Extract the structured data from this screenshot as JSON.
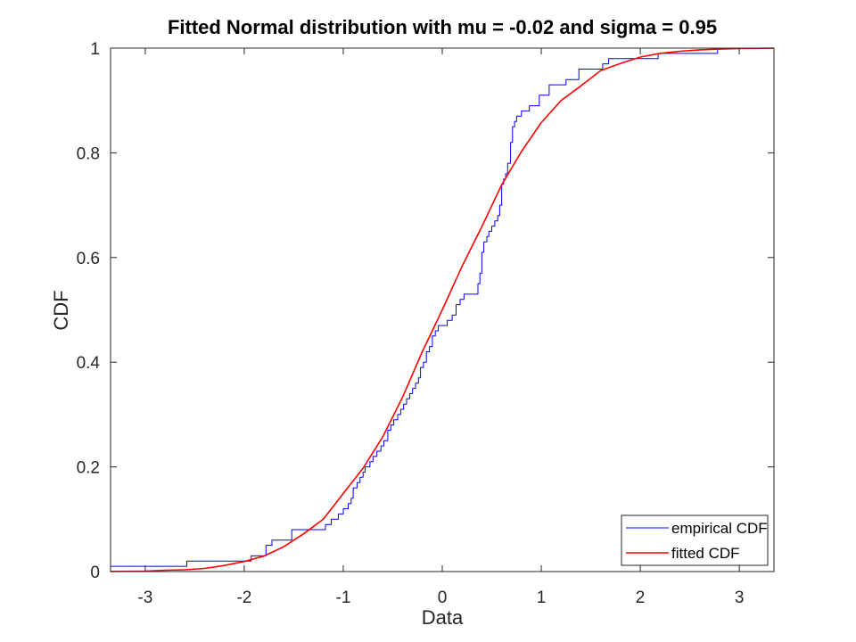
{
  "chart_data": {
    "type": "line",
    "title": "Fitted Normal distribution with mu = -0.02 and sigma = 0.95",
    "xlabel": "Data",
    "ylabel": "CDF",
    "xlim": [
      -3.35,
      3.35
    ],
    "ylim": [
      0,
      1
    ],
    "xticks": [
      -3,
      -2,
      -1,
      0,
      1,
      2,
      3
    ],
    "xtick_labels": [
      "-3",
      "-2",
      "-1",
      "0",
      "1",
      "2",
      "3"
    ],
    "yticks": [
      0,
      0.2,
      0.4,
      0.6,
      0.8,
      1
    ],
    "ytick_labels": [
      "0",
      "0.2",
      "0.4",
      "0.6",
      "0.8",
      "1"
    ],
    "grid": false,
    "legend_position": "bottom-right",
    "fit": {
      "mu": -0.02,
      "sigma": 0.95
    },
    "series": [
      {
        "name": "empirical CDF",
        "color": "#0000ff",
        "style": "step",
        "x": [
          -3.35,
          -2.58,
          -1.98,
          -1.93,
          -1.78,
          -1.72,
          -1.52,
          -1.18,
          -1.12,
          -1.05,
          -1.0,
          -0.95,
          -0.92,
          -0.9,
          -0.86,
          -0.83,
          -0.8,
          -0.78,
          -0.73,
          -0.7,
          -0.66,
          -0.62,
          -0.59,
          -0.55,
          -0.52,
          -0.49,
          -0.45,
          -0.42,
          -0.39,
          -0.36,
          -0.33,
          -0.3,
          -0.27,
          -0.24,
          -0.22,
          -0.19,
          -0.16,
          -0.13,
          -0.1,
          -0.07,
          -0.04,
          -0.02,
          0.05,
          0.1,
          0.14,
          0.18,
          0.22,
          0.3,
          0.36,
          0.38,
          0.4,
          0.42,
          0.45,
          0.47,
          0.5,
          0.53,
          0.56,
          0.58,
          0.6,
          0.62,
          0.64,
          0.66,
          0.69,
          0.71,
          0.73,
          0.75,
          0.77,
          0.8,
          0.88,
          0.98,
          1.08,
          1.25,
          1.38,
          1.55,
          1.62,
          1.68,
          2.18,
          2.78
        ],
        "y": [
          0.01,
          0.02,
          0.02,
          0.03,
          0.05,
          0.06,
          0.08,
          0.09,
          0.1,
          0.11,
          0.12,
          0.13,
          0.14,
          0.16,
          0.17,
          0.18,
          0.19,
          0.2,
          0.21,
          0.22,
          0.23,
          0.24,
          0.25,
          0.27,
          0.28,
          0.29,
          0.3,
          0.31,
          0.32,
          0.33,
          0.34,
          0.35,
          0.36,
          0.37,
          0.39,
          0.4,
          0.42,
          0.43,
          0.45,
          0.46,
          0.47,
          0.47,
          0.48,
          0.49,
          0.51,
          0.52,
          0.53,
          0.53,
          0.55,
          0.57,
          0.61,
          0.63,
          0.64,
          0.65,
          0.66,
          0.67,
          0.68,
          0.7,
          0.74,
          0.75,
          0.76,
          0.78,
          0.82,
          0.85,
          0.86,
          0.87,
          0.87,
          0.88,
          0.89,
          0.91,
          0.93,
          0.94,
          0.96,
          0.96,
          0.97,
          0.98,
          0.99,
          1.0
        ]
      },
      {
        "name": "fitted CDF",
        "color": "#ff0000",
        "style": "smooth",
        "x": [
          -3.35,
          -3.0,
          -2.8,
          -2.6,
          -2.4,
          -2.2,
          -2.0,
          -1.8,
          -1.6,
          -1.4,
          -1.2,
          -1.0,
          -0.8,
          -0.6,
          -0.4,
          -0.2,
          0.0,
          0.2,
          0.4,
          0.6,
          0.8,
          1.0,
          1.2,
          1.4,
          1.6,
          1.8,
          2.0,
          2.2,
          2.4,
          2.6,
          2.8,
          3.0,
          3.35
        ],
        "y": [
          0.0002,
          0.0009,
          0.0026,
          0.0034,
          0.006,
          0.0115,
          0.0192,
          0.0296,
          0.0476,
          0.0721,
          0.1003,
          0.1493,
          0.1977,
          0.2578,
          0.3336,
          0.4207,
          0.5,
          0.5832,
          0.6591,
          0.7389,
          0.8023,
          0.8577,
          0.9,
          0.9279,
          0.9573,
          0.9709,
          0.983,
          0.9901,
          0.994,
          0.9967,
          0.9982,
          0.9992,
          0.9998
        ]
      }
    ]
  }
}
